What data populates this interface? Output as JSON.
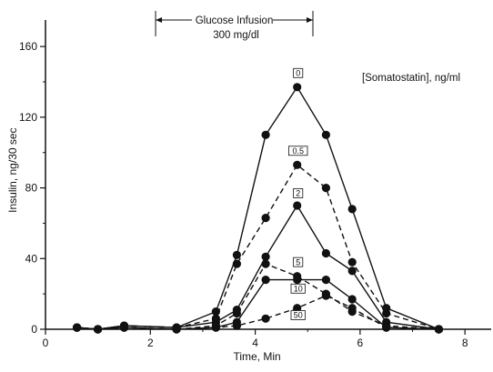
{
  "chart_data": {
    "type": "line",
    "title": "",
    "xlabel": "Time, Min",
    "ylabel": "Insulin, ng/30 sec",
    "xlim": [
      0,
      8.5
    ],
    "ylim": [
      0,
      175
    ],
    "xticks": [
      0,
      2,
      4,
      6,
      8
    ],
    "yticks": [
      0,
      40,
      80,
      120,
      160
    ],
    "grid": false,
    "infusion": {
      "label_line1": "Glucose Infusion",
      "label_line2": "300 mg/dl",
      "start": 2.1,
      "end": 5.1
    },
    "legend_title": "[Somatostatin], ng/ml",
    "x": [
      0.6,
      1.0,
      1.5,
      2.5,
      3.25,
      3.65,
      4.2,
      4.8,
      5.35,
      5.85,
      6.5,
      7.5
    ],
    "series": [
      {
        "name": "0",
        "style": "solid",
        "values": [
          1,
          0,
          2,
          1,
          10,
          42,
          110,
          137,
          110,
          68,
          12,
          0
        ]
      },
      {
        "name": "0.5",
        "style": "dashed",
        "values": [
          1,
          0,
          2,
          1,
          6,
          37,
          63,
          93,
          80,
          38,
          9,
          0
        ]
      },
      {
        "name": "2",
        "style": "solid",
        "values": [
          1,
          0,
          2,
          1,
          4,
          11,
          41,
          70,
          43,
          33,
          4,
          0
        ]
      },
      {
        "name": "5",
        "style": "dashed",
        "values": [
          1,
          0,
          1,
          0,
          2,
          9,
          37,
          30,
          20,
          10,
          2,
          0
        ]
      },
      {
        "name": "10",
        "style": "solid",
        "values": [
          1,
          0,
          1,
          0,
          1,
          4,
          28,
          28,
          28,
          17,
          1,
          0
        ]
      },
      {
        "name": "50",
        "style": "dashed",
        "values": [
          1,
          0,
          1,
          0,
          1,
          2,
          6,
          12,
          19,
          12,
          1,
          0
        ]
      }
    ],
    "series_label_positions": {
      "0": {
        "x": 4.8,
        "y": 145
      },
      "0.5": {
        "x": 4.8,
        "y": 101
      },
      "2": {
        "x": 4.8,
        "y": 77
      },
      "5": {
        "x": 4.8,
        "y": 38
      },
      "10": {
        "x": 4.8,
        "y": 23
      },
      "50": {
        "x": 4.8,
        "y": 8
      }
    }
  }
}
